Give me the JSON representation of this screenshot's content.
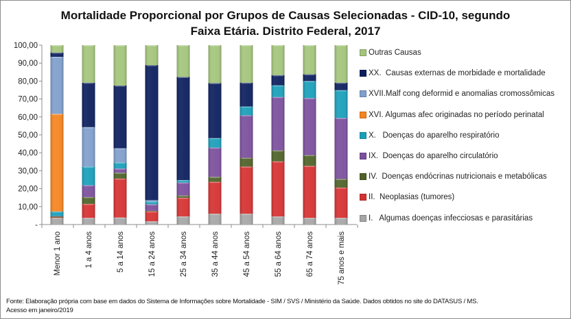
{
  "chart_data": {
    "type": "bar",
    "stacked": true,
    "title_line1": "Mortalidade Proporcional por Grupos de Causas Selecionadas - CID-10, segundo",
    "title_line2": "Faixa Etária. Distrito Federal, 2017",
    "xlabel": "",
    "ylabel": "",
    "ylim": [
      0,
      100
    ],
    "yticks": [
      "-",
      "10,00",
      "20,00",
      "30,00",
      "40,00",
      "50,00",
      "60,00",
      "70,00",
      "80,00",
      "90,00",
      "100,00"
    ],
    "grid": false,
    "legend_position": "right",
    "categories": [
      "Menor 1 ano",
      "1 a 4 anos",
      "5 a 14 anos",
      "15 a 24 anos",
      "25 a 34 anos",
      "35 a 44 anos",
      "45 a 54 anos",
      "55 a 64 anos",
      "65 a 74 anos",
      "75 anos e mais"
    ],
    "series": [
      {
        "name": "I.   Algumas doenças infecciosas e parasitárias",
        "color": "#a6a6a6",
        "values": [
          3.7,
          3.7,
          3.9,
          1.8,
          4.5,
          6.0,
          6.0,
          4.5,
          3.7,
          3.7
        ]
      },
      {
        "name": "II.  Neoplasias (tumores)",
        "color": "#d63131",
        "values": [
          0.3,
          7.8,
          21.7,
          5.5,
          10.4,
          17.8,
          26.3,
          30.7,
          29.0,
          16.9
        ]
      },
      {
        "name": "IV.  Doenças endócrinas nutricionais e metabólicas",
        "color": "#4f6228",
        "values": [
          0.5,
          3.8,
          3.3,
          0.4,
          1.3,
          2.8,
          4.9,
          6.1,
          6.0,
          4.8
        ]
      },
      {
        "name": "IX.  Doenças do aparelho circulatório",
        "color": "#7b4f9d",
        "values": [
          0.2,
          6.6,
          2.3,
          3.6,
          7.2,
          16.3,
          23.7,
          29.8,
          31.8,
          34.0
        ]
      },
      {
        "name": "X.   Doenças do aparelho respiratório",
        "color": "#1a9fba",
        "values": [
          2.6,
          10.4,
          3.4,
          1.6,
          1.4,
          5.3,
          4.9,
          6.5,
          9.5,
          15.5
        ]
      },
      {
        "name": "XVI. Algumas afec originadas no período perinatal",
        "color": "#f5841f",
        "values": [
          54.4,
          0,
          0,
          0,
          0,
          0,
          0,
          0,
          0,
          0
        ]
      },
      {
        "name": "XVII.Malf cong deformid e anomalias cromossômicas",
        "color": "#7f9fcc",
        "values": [
          31.8,
          22.0,
          7.9,
          0.7,
          0,
          0,
          0,
          0,
          0,
          0
        ]
      },
      {
        "name": "XX.  Causas externas de morbidade e mortalidade",
        "color": "#0c1f5e",
        "values": [
          2.4,
          24.8,
          35.0,
          75.3,
          57.5,
          30.7,
          13.3,
          5.7,
          3.8,
          4.2
        ]
      },
      {
        "name": "Outras Causas",
        "color": "#a3c57b",
        "values": [
          4.1,
          20.9,
          22.5,
          11.1,
          17.7,
          21.1,
          20.9,
          16.7,
          16.2,
          20.9
        ]
      }
    ]
  },
  "source_line1": "Fonte: Elaboração própria com base em dados do  Sistema de Informações sobre Mortalidade - SIM / SVS / Ministério da Saúde. Dados obtidos no site do DATASUS / MS.",
  "source_line2": "Acesso em janeiro/2019"
}
